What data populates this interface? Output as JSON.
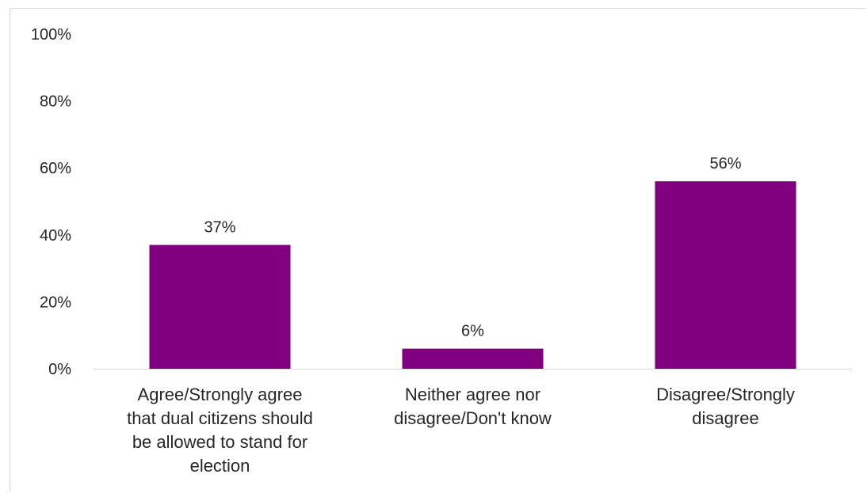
{
  "chart_data": {
    "type": "bar",
    "categories": [
      [
        "Agree/Strongly agree",
        "that dual citizens should",
        "be allowed to stand for",
        "election"
      ],
      [
        "Neither agree nor",
        "disagree/Don't know"
      ],
      [
        "Disagree/Strongly",
        "disagree"
      ]
    ],
    "values": [
      37,
      6,
      56
    ],
    "data_labels": [
      "37%",
      "6%",
      "56%"
    ],
    "ylim": [
      0,
      100
    ],
    "yticks": [
      0,
      20,
      40,
      60,
      80,
      100
    ],
    "ytick_labels": [
      "0%",
      "20%",
      "40%",
      "60%",
      "80%",
      "100%"
    ],
    "grid": false,
    "legend": "none",
    "colors": {
      "bar": "#800080",
      "axis": "#d9d9d9",
      "text": "#262626"
    }
  }
}
